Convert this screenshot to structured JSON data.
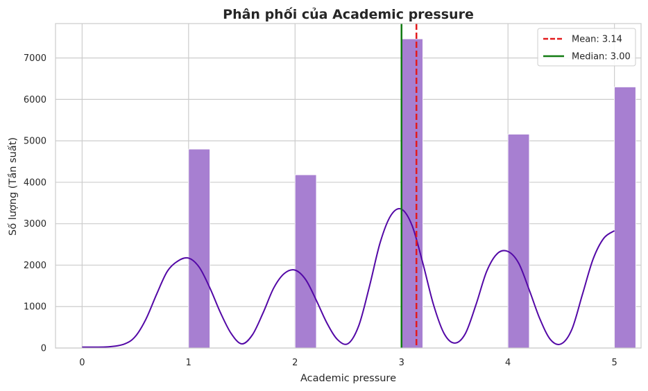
{
  "chart_data": {
    "type": "bar",
    "title": "Phân phối của Academic pressure",
    "xlabel": "Academic pressure",
    "ylabel": "Số lượng (Tần suất)",
    "xlim": [
      -0.25,
      5.25
    ],
    "ylim": [
      0,
      7830
    ],
    "x_ticks": [
      "0",
      "1",
      "2",
      "3",
      "4",
      "5"
    ],
    "y_ticks": [
      "0",
      "1000",
      "2000",
      "3000",
      "4000",
      "5000",
      "6000",
      "7000"
    ],
    "bin_width": 0.2,
    "bars": [
      {
        "x": 1,
        "value": 4800
      },
      {
        "x": 2,
        "value": 4180
      },
      {
        "x": 3,
        "value": 7460
      },
      {
        "x": 4,
        "value": 5160
      },
      {
        "x": 5,
        "value": 6300
      }
    ],
    "kde": {
      "x": [
        0,
        0.25,
        0.4,
        0.5,
        0.6,
        0.7,
        0.8,
        0.9,
        1.0,
        1.1,
        1.2,
        1.3,
        1.4,
        1.5,
        1.6,
        1.7,
        1.8,
        1.9,
        2.0,
        2.1,
        2.2,
        2.3,
        2.4,
        2.5,
        2.6,
        2.7,
        2.8,
        2.9,
        3.0,
        3.1,
        3.2,
        3.3,
        3.4,
        3.5,
        3.6,
        3.7,
        3.8,
        3.9,
        4.0,
        4.1,
        4.2,
        4.3,
        4.4,
        4.5,
        4.6,
        4.7,
        4.8,
        4.9,
        5.0
      ],
      "y": [
        20,
        30,
        100,
        280,
        700,
        1300,
        1850,
        2100,
        2170,
        1950,
        1450,
        850,
        350,
        100,
        320,
        850,
        1450,
        1800,
        1880,
        1650,
        1150,
        600,
        200,
        110,
        550,
        1500,
        2550,
        3200,
        3350,
        2950,
        2050,
        1050,
        350,
        120,
        350,
        1050,
        1850,
        2280,
        2330,
        2050,
        1400,
        700,
        200,
        100,
        450,
        1300,
        2150,
        2650,
        2830
      ]
    },
    "mean": 3.14,
    "median": 3.0,
    "legend": [
      {
        "label": "Mean: 3.14",
        "color": "#e31a1c",
        "style": "dashed"
      },
      {
        "label": "Median: 3.00",
        "color": "#117a11",
        "style": "solid"
      }
    ],
    "legend_position": "top-right",
    "grid": true,
    "colors": {
      "bar": "#a77fd1",
      "kde": "#5308a6",
      "grid": "#cccccc",
      "mean": "#e31a1c",
      "median": "#117a11"
    }
  }
}
